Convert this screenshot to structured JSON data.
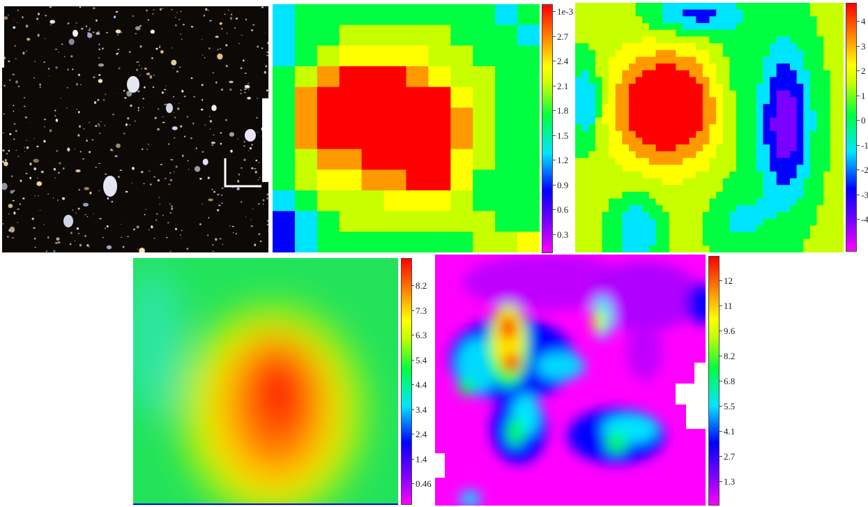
{
  "panels": [
    {
      "name": "optical-galaxy-field-image"
    },
    {
      "name": "pixelated-density-map",
      "colorbar_ticks": [
        "1e-3",
        "2.7",
        "2.4",
        "2.1",
        "1.8",
        "1.5",
        "1.2",
        "0.9",
        "0.6",
        "0.3"
      ]
    },
    {
      "name": "smooth-snr-map",
      "colorbar_ticks": [
        "4",
        "3",
        "2",
        "1",
        "0",
        "-1",
        "-2",
        "-3",
        "-4"
      ]
    },
    {
      "name": "smoothed-mass-map",
      "colorbar_ticks": [
        "8.2",
        "7.3",
        "6.3",
        "5.4",
        "4.4",
        "3.4",
        "2.4",
        "1.4",
        "0.46"
      ]
    },
    {
      "name": "clumpy-mass-map",
      "colorbar_ticks": [
        "12",
        "11",
        "9.6",
        "8.2",
        "6.8",
        "5.5",
        "4.1",
        "2.7",
        "1.3"
      ]
    }
  ],
  "colors": {
    "colormap": [
      "#ff00ff",
      "#7a00ff",
      "#0000ff",
      "#00e5ff",
      "#00ff40",
      "#c8ff00",
      "#ffff00",
      "#ff9900",
      "#ff0000"
    ],
    "background": "#ffffff"
  }
}
